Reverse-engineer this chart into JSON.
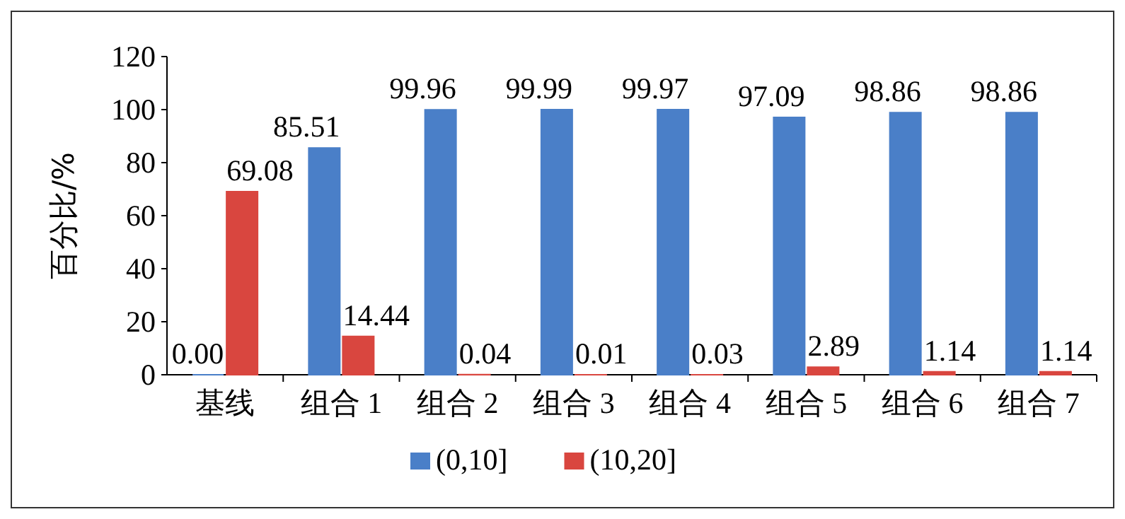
{
  "chart_data": {
    "type": "bar",
    "ylabel": "百分比/%",
    "categories": [
      "基线",
      "组合 1",
      "组合 2",
      "组合 3",
      "组合 4",
      "组合 5",
      "组合 6",
      "组合 7"
    ],
    "series": [
      {
        "name": "(0,10]",
        "color": "#4a7fc8",
        "values": [
          0.0,
          85.51,
          99.96,
          99.99,
          99.97,
          97.09,
          98.86,
          98.86
        ],
        "value_labels": [
          "0.00",
          "85.51",
          "99.96",
          "99.99",
          "99.97",
          "97.09",
          "98.86",
          "98.86"
        ]
      },
      {
        "name": "(10,20]",
        "color": "#d9463f",
        "values": [
          69.08,
          14.44,
          0.04,
          0.01,
          0.03,
          2.89,
          1.14,
          1.14
        ],
        "value_labels": [
          "69.08",
          "14.44",
          "0.04",
          "0.01",
          "0.03",
          "2.89",
          "1.14",
          "1.14"
        ]
      }
    ],
    "ylim": [
      0,
      120
    ],
    "yticks": [
      0,
      20,
      40,
      60,
      80,
      100,
      120
    ],
    "grid": false,
    "legend": "bottom"
  }
}
